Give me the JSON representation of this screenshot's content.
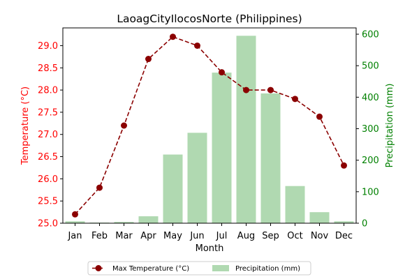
{
  "chart_data": {
    "type": "bar+line",
    "title": "LaoagCityIlocosNorte (Philippines)",
    "xlabel": "Month",
    "ylabel_left": "Temperature (°C)",
    "ylabel_right": "Precipitation (mm)",
    "categories": [
      "Jan",
      "Feb",
      "Mar",
      "Apr",
      "May",
      "Jun",
      "Jul",
      "Aug",
      "Sep",
      "Oct",
      "Nov",
      "Dec"
    ],
    "ylim_left": [
      25.0,
      29.4
    ],
    "yticks_left": [
      "25.0",
      "25.5",
      "26.0",
      "26.5",
      "27.0",
      "27.5",
      "28.0",
      "28.5",
      "29.0"
    ],
    "ylim_right": [
      0,
      620
    ],
    "yticks_right": [
      "0",
      "100",
      "200",
      "300",
      "400",
      "500",
      "600"
    ],
    "grid": false,
    "legend_placement": "bottom-center",
    "series": [
      {
        "name": "Max Temperature (°C)",
        "kind": "line",
        "axis": "left",
        "color": "#8b0000",
        "values": [
          25.2,
          25.8,
          27.2,
          28.7,
          29.2,
          29.0,
          28.4,
          28.0,
          28.0,
          27.8,
          27.4,
          26.3
        ]
      },
      {
        "name": "Precipitation (mm)",
        "kind": "bar",
        "axis": "right",
        "color": "#b0d9b1",
        "values": [
          6,
          2,
          4,
          22,
          218,
          287,
          478,
          595,
          412,
          118,
          35,
          6
        ]
      }
    ],
    "colors": {
      "left_axis": "#ff0000",
      "right_axis": "#008000"
    }
  }
}
